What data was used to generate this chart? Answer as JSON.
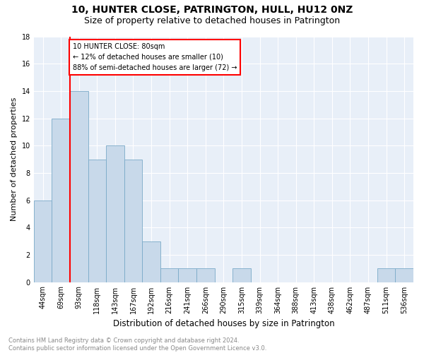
{
  "title": "10, HUNTER CLOSE, PATRINGTON, HULL, HU12 0NZ",
  "subtitle": "Size of property relative to detached houses in Patrington",
  "xlabel": "Distribution of detached houses by size in Patrington",
  "ylabel": "Number of detached properties",
  "categories": [
    "44sqm",
    "69sqm",
    "93sqm",
    "118sqm",
    "143sqm",
    "167sqm",
    "192sqm",
    "216sqm",
    "241sqm",
    "266sqm",
    "290sqm",
    "315sqm",
    "339sqm",
    "364sqm",
    "388sqm",
    "413sqm",
    "438sqm",
    "462sqm",
    "487sqm",
    "511sqm",
    "536sqm"
  ],
  "values": [
    6,
    12,
    14,
    9,
    10,
    9,
    3,
    1,
    1,
    1,
    0,
    1,
    0,
    0,
    0,
    0,
    0,
    0,
    0,
    1,
    1
  ],
  "bar_color": "#c8d9ea",
  "bar_edgecolor": "#7aaac8",
  "annotation_text": "10 HUNTER CLOSE: 80sqm\n← 12% of detached houses are smaller (10)\n88% of semi-detached houses are larger (72) →",
  "annotation_box_color": "white",
  "annotation_box_edgecolor": "red",
  "red_line_index": 1.5,
  "ylim": [
    0,
    18
  ],
  "yticks": [
    0,
    2,
    4,
    6,
    8,
    10,
    12,
    14,
    16,
    18
  ],
  "footer_text": "Contains HM Land Registry data © Crown copyright and database right 2024.\nContains public sector information licensed under the Open Government Licence v3.0.",
  "background_color": "#e8eff8",
  "plot_background": "#ffffff",
  "title_fontsize": 10,
  "subtitle_fontsize": 9,
  "ylabel_fontsize": 8,
  "xlabel_fontsize": 8.5,
  "tick_fontsize": 7,
  "annotation_fontsize": 7,
  "footer_fontsize": 6
}
